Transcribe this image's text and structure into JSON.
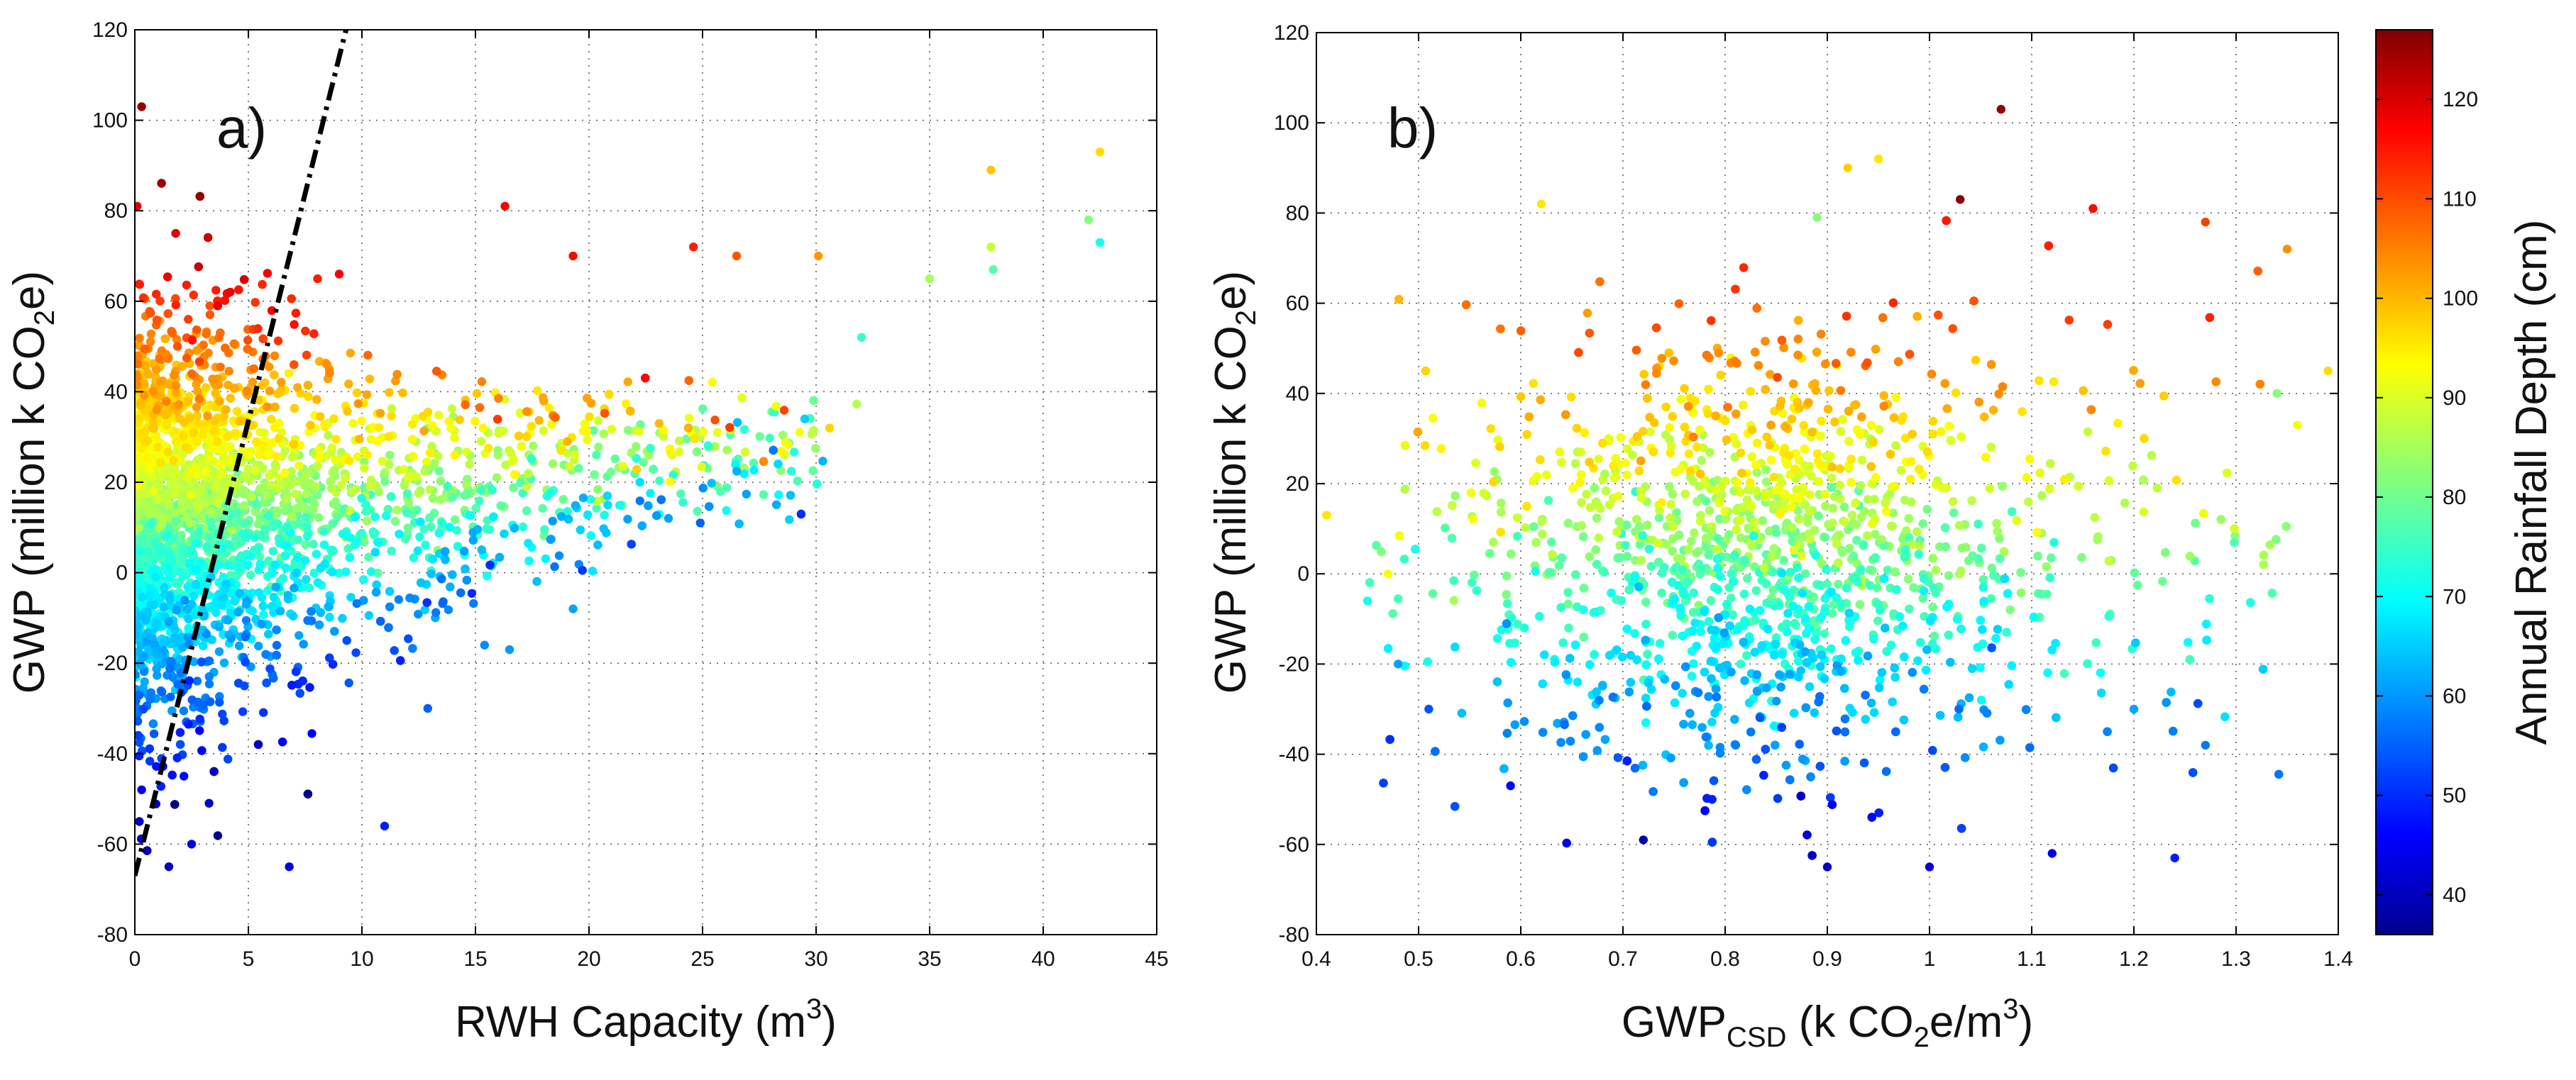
{
  "chart_data": [
    {
      "type": "scatter",
      "panel_label": "a)",
      "xlabel": {
        "main": "RWH Capacity (m",
        "sup": "3",
        "end": ")"
      },
      "ylabel": {
        "main": "GWP (million k CO",
        "sub": "2",
        "end": "e)"
      },
      "xlim": [
        0,
        45
      ],
      "ylim": [
        -80,
        120
      ],
      "xticks": [
        "0",
        "5",
        "10",
        "15",
        "20",
        "25",
        "30",
        "35",
        "40",
        "45"
      ],
      "yticks": [
        "-80",
        "-60",
        "-40",
        "-20",
        "0",
        "20",
        "40",
        "60",
        "80",
        "100",
        "120"
      ],
      "grid": true,
      "reference_line": {
        "style": "dash-dot",
        "color": "#000000",
        "x": [
          0,
          9.3
        ],
        "y": [
          -67,
          120
        ]
      },
      "color_variable": "Annual Rainfall Depth (cm)",
      "point_count_approx": 10000,
      "relationship": "GWP increases with rainfall depth; high-rainfall points lie at the top, low-rainfall points at the bottom; spread widens with capacity",
      "sample_points": [
        {
          "x": 0.3,
          "y": 103,
          "c": 125
        },
        {
          "x": 0.1,
          "y": 81,
          "c": 118
        },
        {
          "x": 1.8,
          "y": 75,
          "c": 118
        },
        {
          "x": 4.2,
          "y": 62,
          "c": 117
        },
        {
          "x": 9.0,
          "y": 66,
          "c": 116
        },
        {
          "x": 16.3,
          "y": 81,
          "c": 116
        },
        {
          "x": 19.3,
          "y": 70,
          "c": 115
        },
        {
          "x": 24.6,
          "y": 72,
          "c": 113
        },
        {
          "x": 26.5,
          "y": 70,
          "c": 108
        },
        {
          "x": 30.1,
          "y": 70,
          "c": 102
        },
        {
          "x": 37.7,
          "y": 89,
          "c": 98
        },
        {
          "x": 42.5,
          "y": 93,
          "c": 96
        },
        {
          "x": 37.7,
          "y": 72,
          "c": 88
        },
        {
          "x": 42.0,
          "y": 78,
          "c": 82
        },
        {
          "x": 42.5,
          "y": 73,
          "c": 72
        },
        {
          "x": 37.8,
          "y": 67,
          "c": 78
        },
        {
          "x": 35.0,
          "y": 65,
          "c": 85
        },
        {
          "x": 32.0,
          "y": 52,
          "c": 75
        },
        {
          "x": 29.5,
          "y": 34,
          "c": 66
        },
        {
          "x": 23.5,
          "y": 12,
          "c": 62
        },
        {
          "x": 24.9,
          "y": 11,
          "c": 56
        },
        {
          "x": 19.3,
          "y": -8,
          "c": 62
        },
        {
          "x": 15.4,
          "y": -16,
          "c": 60
        },
        {
          "x": 16.5,
          "y": -17,
          "c": 61
        },
        {
          "x": 12.9,
          "y": -30,
          "c": 56
        },
        {
          "x": 11.0,
          "y": -56,
          "c": 50
        },
        {
          "x": 6.8,
          "y": -65,
          "c": 45
        },
        {
          "x": 2.5,
          "y": -60,
          "c": 45
        },
        {
          "x": 1.5,
          "y": -65,
          "c": 42
        },
        {
          "x": 0.3,
          "y": -48,
          "c": 46
        },
        {
          "x": 0.2,
          "y": -55,
          "c": 42
        }
      ]
    },
    {
      "type": "scatter",
      "panel_label": "b)",
      "xlabel": {
        "main": "GWP",
        "sub1": "CSD",
        "mid": " (k CO",
        "sub2": "2",
        "after": "e/m",
        "sup": "3",
        "end": ")"
      },
      "ylabel": {
        "main": "GWP (million k CO",
        "sub": "2",
        "end": "e)"
      },
      "xlim": [
        0.4,
        1.4
      ],
      "ylim": [
        -80,
        120
      ],
      "xticks": [
        "0.4",
        "0.5",
        "0.6",
        "0.7",
        "0.8",
        "0.9",
        "1",
        "1.1",
        "1.2",
        "1.3",
        "1.4"
      ],
      "yticks": [
        "-80",
        "-60",
        "-40",
        "-20",
        "0",
        "20",
        "40",
        "60",
        "80",
        "100",
        "120"
      ],
      "grid": true,
      "color_variable": "Annual Rainfall Depth (cm)",
      "point_count_approx": 10000,
      "relationship": "points bands by rainfall depth: high rainfall near GWP 40–60, low rainfall near -40 to -60; cloud centered near GWP_CSD 0.8–0.9",
      "sample_points": [
        {
          "x": 1.07,
          "y": 103,
          "c": 125
        },
        {
          "x": 1.03,
          "y": 83,
          "c": 126
        },
        {
          "x": 0.92,
          "y": 90,
          "c": 97
        },
        {
          "x": 0.95,
          "y": 92,
          "c": 95
        },
        {
          "x": 0.62,
          "y": 82,
          "c": 95
        },
        {
          "x": 0.89,
          "y": 79,
          "c": 82
        },
        {
          "x": 1.16,
          "y": 81,
          "c": 115
        },
        {
          "x": 1.27,
          "y": 78,
          "c": 110
        },
        {
          "x": 1.35,
          "y": 72,
          "c": 103
        },
        {
          "x": 1.39,
          "y": 45,
          "c": 96
        },
        {
          "x": 1.36,
          "y": 33,
          "c": 92
        },
        {
          "x": 1.34,
          "y": 40,
          "c": 82
        },
        {
          "x": 0.41,
          "y": 13,
          "c": 95
        },
        {
          "x": 0.47,
          "y": 0,
          "c": 92
        },
        {
          "x": 0.45,
          "y": -6,
          "c": 72
        },
        {
          "x": 0.48,
          "y": -20,
          "c": 62
        },
        {
          "x": 0.51,
          "y": -30,
          "c": 55
        },
        {
          "x": 0.59,
          "y": -47,
          "c": 48
        },
        {
          "x": 0.72,
          "y": -59,
          "c": 40
        },
        {
          "x": 0.9,
          "y": -65,
          "c": 42
        },
        {
          "x": 1.0,
          "y": -65,
          "c": 44
        },
        {
          "x": 1.12,
          "y": -62,
          "c": 46
        },
        {
          "x": 1.24,
          "y": -63,
          "c": 50
        },
        {
          "x": 1.27,
          "y": -38,
          "c": 58
        },
        {
          "x": 1.2,
          "y": -30,
          "c": 62
        }
      ]
    }
  ],
  "colorbar": {
    "label": "Annual Rainfall Depth (cm)",
    "range": [
      36,
      127
    ],
    "ticks": [
      "40",
      "50",
      "60",
      "70",
      "80",
      "90",
      "100",
      "110",
      "120"
    ],
    "colormap": "jet",
    "stops": [
      "#00008f",
      "#0000ff",
      "#00ffff",
      "#ffff00",
      "#ff0000",
      "#800000"
    ]
  }
}
